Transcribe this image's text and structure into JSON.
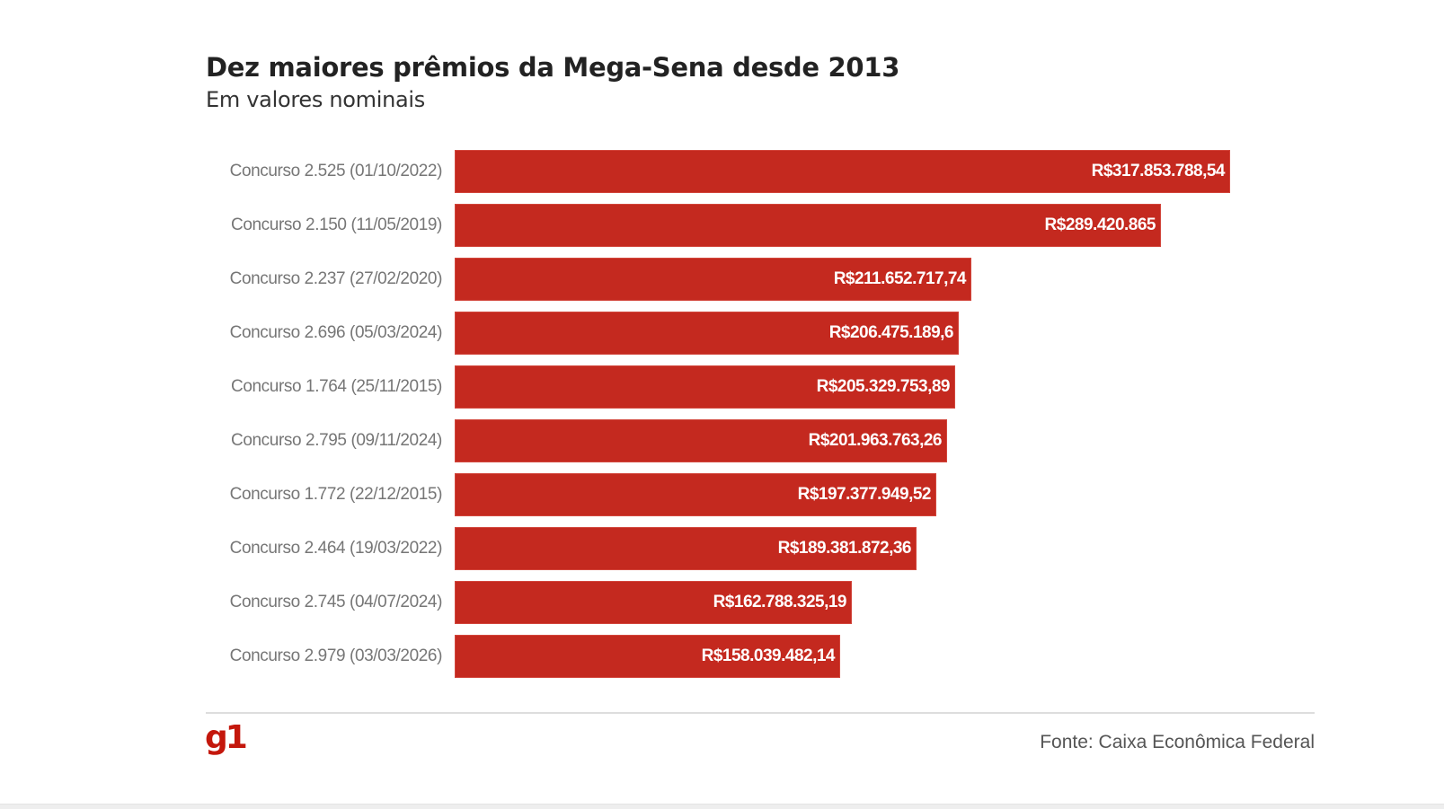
{
  "header": {
    "title": "Dez maiores prêmios da Mega-Sena desde 2013",
    "subtitle": "Em valores nominais"
  },
  "footer": {
    "logo": "g1",
    "source": "Fonte: Caixa Econômica Federal"
  },
  "colors": {
    "bar": "#c4291f",
    "logo": "#c4170c"
  },
  "chart_data": {
    "type": "bar",
    "orientation": "horizontal",
    "title": "Dez maiores prêmios da Mega-Sena desde 2013",
    "subtitle": "Em valores nominais",
    "xlabel": "",
    "ylabel": "",
    "xlim": [
      0,
      317853788.54
    ],
    "grid": false,
    "legend": "none",
    "categories": [
      "Concurso 2.525 (01/10/2022)",
      "Concurso 2.150 (11/05/2019)",
      "Concurso 2.237 (27/02/2020)",
      "Concurso 2.696 (05/03/2024)",
      "Concurso 1.764 (25/11/2015)",
      "Concurso 2.795 (09/11/2024)",
      "Concurso 1.772 (22/12/2015)",
      "Concurso 2.464 (19/03/2022)",
      "Concurso 2.745 (04/07/2024)",
      "Concurso 2.979 (03/03/2026)"
    ],
    "values": [
      317853788.54,
      289420865,
      211652717.74,
      206475189.6,
      205329753.89,
      201963763.26,
      197377949.52,
      189381872.36,
      162788325.19,
      158039482.14
    ],
    "data_labels": [
      "R$317.853.788,54",
      "R$289.420.865",
      "R$211.652.717,74",
      "R$206.475.189,6",
      "R$205.329.753,89",
      "R$201.963.763,26",
      "R$197.377.949,52",
      "R$189.381.872,36",
      "R$162.788.325,19",
      "R$158.039.482,14"
    ],
    "source": "Fonte: Caixa Econômica Federal"
  }
}
